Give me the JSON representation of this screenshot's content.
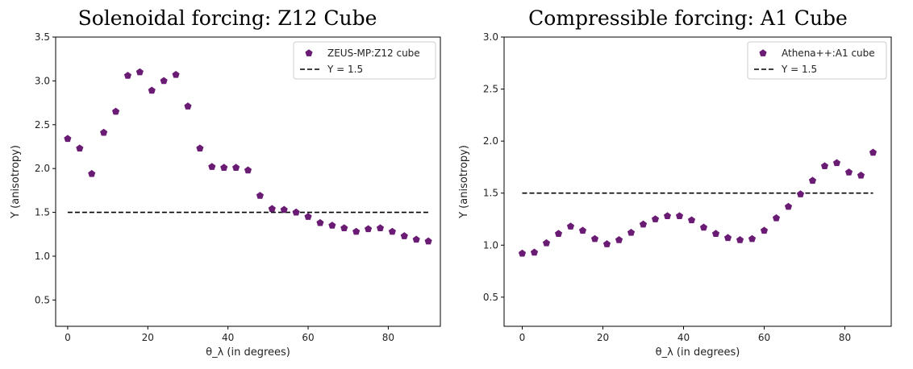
{
  "charts": [
    {
      "title": "Solenoidal forcing:  Z12 Cube",
      "chart_data": {
        "type": "scatter",
        "xlabel": "θ_λ (in degrees)",
        "ylabel": "Y (anisotropy)",
        "xlim": [
          -3,
          93
        ],
        "ylim": [
          0.2,
          3.5
        ],
        "xticks": [
          "0",
          "20",
          "40",
          "60",
          "80"
        ],
        "yticks": [
          "0.5",
          "1.0",
          "1.5",
          "2.0",
          "2.5",
          "3.0",
          "3.5"
        ],
        "legend_position": "top-right",
        "series": [
          {
            "name": "ZEUS-MP:Z12 cube",
            "marker": "pentagon",
            "color": "#6a1b73",
            "x": [
              0,
              3,
              6,
              9,
              12,
              15,
              18,
              21,
              24,
              27,
              30,
              33,
              36,
              39,
              42,
              45,
              48,
              51,
              54,
              57,
              60,
              63,
              66,
              69,
              72,
              75,
              78,
              81,
              84,
              87,
              90
            ],
            "y": [
              2.34,
              2.23,
              1.94,
              2.41,
              2.65,
              3.06,
              3.1,
              2.89,
              3.0,
              3.07,
              2.71,
              2.23,
              2.02,
              2.01,
              2.01,
              1.98,
              1.69,
              1.54,
              1.53,
              1.5,
              1.45,
              1.38,
              1.35,
              1.32,
              1.28,
              1.31,
              1.32,
              1.28,
              1.23,
              1.19,
              1.17
            ]
          },
          {
            "name": "Y = 1.5",
            "style": "dashed",
            "color": "#000000",
            "x": [
              0,
              90
            ],
            "y": [
              1.5,
              1.5
            ]
          }
        ]
      }
    },
    {
      "title": "Compressible forcing: A1 Cube",
      "chart_data": {
        "type": "scatter",
        "xlabel": "θ_λ (in degrees)",
        "ylabel": "Y (anisotropy)",
        "xlim": [
          -4.5,
          91.5
        ],
        "ylim": [
          0.22,
          3.0
        ],
        "xticks": [
          "0",
          "20",
          "40",
          "60",
          "80"
        ],
        "yticks": [
          "0.5",
          "1.0",
          "1.5",
          "2.0",
          "2.5",
          "3.0"
        ],
        "legend_position": "top-right",
        "series": [
          {
            "name": "Athena++:A1 cube",
            "marker": "pentagon",
            "color": "#6a1b73",
            "x": [
              0,
              3,
              6,
              9,
              12,
              15,
              18,
              21,
              24,
              27,
              30,
              33,
              36,
              39,
              42,
              45,
              48,
              51,
              54,
              57,
              60,
              63,
              66,
              69,
              72,
              75,
              78,
              81,
              84,
              87
            ],
            "y": [
              0.92,
              0.93,
              1.02,
              1.11,
              1.18,
              1.14,
              1.06,
              1.01,
              1.05,
              1.12,
              1.2,
              1.25,
              1.28,
              1.28,
              1.24,
              1.17,
              1.11,
              1.07,
              1.05,
              1.06,
              1.14,
              1.26,
              1.37,
              1.49,
              1.62,
              1.76,
              1.79,
              1.7,
              1.67,
              1.89
            ]
          },
          {
            "name": "Y = 1.5",
            "style": "dashed",
            "color": "#000000",
            "x": [
              0,
              87
            ],
            "y": [
              1.5,
              1.5
            ]
          }
        ]
      }
    }
  ]
}
